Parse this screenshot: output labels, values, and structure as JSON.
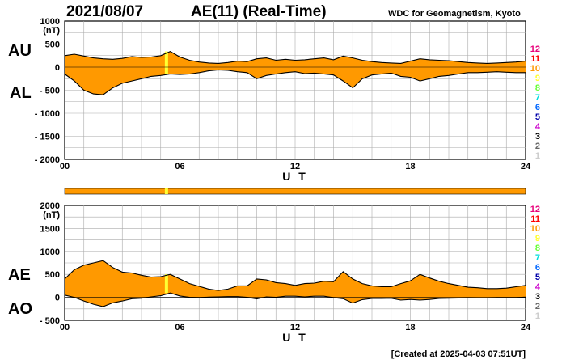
{
  "header": {
    "date": "2021/08/07",
    "title": "AE(11) (Real-Time)",
    "source": "WDC for Geomagnetism, Kyoto"
  },
  "footer": {
    "created": "[Created at 2025-04-03 07:51UT]"
  },
  "legend": {
    "labels": [
      "12",
      "11",
      "10",
      "9",
      "8",
      "7",
      "6",
      "5",
      "4",
      "3",
      "2",
      "1"
    ],
    "colors": [
      "#e8007a",
      "#ff0000",
      "#ff9900",
      "#ffff33",
      "#66ff33",
      "#00dddd",
      "#0066ff",
      "#0000aa",
      "#cc00cc",
      "#000000",
      "#666666",
      "#cccccc"
    ]
  },
  "chart_data": [
    {
      "type": "area",
      "panel": "top",
      "labels": {
        "upper": "AU",
        "lower": "AL"
      },
      "ylabel": "(nT)",
      "xlabel": "U T",
      "ylim": [
        -2000,
        1000
      ],
      "yticks": [
        "1000",
        "500",
        "0",
        "- 500",
        "- 1000",
        "- 1500",
        "- 2000"
      ],
      "ytick_values": [
        1000,
        500,
        0,
        -500,
        -1000,
        -1500,
        -2000
      ],
      "xlim": [
        0,
        24
      ],
      "xticks": [
        "00",
        "06",
        "12",
        "18",
        "24"
      ],
      "xtick_values": [
        0,
        6,
        12,
        18,
        24
      ],
      "grid": true,
      "fill_color": "#ff9900",
      "highlight": {
        "x": 5.3,
        "color": "#ffff33"
      },
      "series": [
        {
          "name": "AU",
          "x": [
            0,
            0.5,
            1,
            1.5,
            2,
            2.5,
            3,
            3.5,
            4,
            4.5,
            5,
            5.5,
            6,
            6.5,
            7,
            7.5,
            8,
            8.5,
            9,
            9.5,
            10,
            10.5,
            11,
            11.5,
            12,
            12.5,
            13,
            13.5,
            14,
            14.5,
            15,
            15.5,
            16,
            16.5,
            17,
            17.5,
            18,
            18.5,
            19,
            19.5,
            20,
            20.5,
            21,
            21.5,
            22,
            22.5,
            23,
            23.5,
            24
          ],
          "values": [
            250,
            280,
            240,
            200,
            180,
            170,
            190,
            230,
            210,
            220,
            250,
            340,
            220,
            150,
            110,
            90,
            80,
            100,
            130,
            120,
            180,
            200,
            150,
            170,
            150,
            160,
            180,
            200,
            160,
            240,
            200,
            150,
            120,
            100,
            90,
            80,
            130,
            180,
            160,
            150,
            140,
            120,
            100,
            90,
            80,
            90,
            100,
            110,
            130
          ]
        },
        {
          "name": "AL",
          "x": [
            0,
            0.5,
            1,
            1.5,
            2,
            2.5,
            3,
            3.5,
            4,
            4.5,
            5,
            5.5,
            6,
            6.5,
            7,
            7.5,
            8,
            8.5,
            9,
            9.5,
            10,
            10.5,
            11,
            11.5,
            12,
            12.5,
            13,
            13.5,
            14,
            14.5,
            15,
            15.5,
            16,
            16.5,
            17,
            17.5,
            18,
            18.5,
            19,
            19.5,
            20,
            20.5,
            21,
            21.5,
            22,
            22.5,
            23,
            23.5,
            24
          ],
          "values": [
            -150,
            -300,
            -500,
            -580,
            -600,
            -450,
            -350,
            -300,
            -250,
            -200,
            -180,
            -150,
            -160,
            -150,
            -120,
            -80,
            -60,
            -70,
            -100,
            -120,
            -250,
            -180,
            -150,
            -120,
            -100,
            -140,
            -130,
            -150,
            -170,
            -300,
            -450,
            -250,
            -170,
            -150,
            -130,
            -200,
            -220,
            -300,
            -250,
            -200,
            -180,
            -150,
            -120,
            -120,
            -110,
            -100,
            -110,
            -120,
            -120
          ]
        }
      ]
    },
    {
      "type": "area",
      "panel": "bottom",
      "labels": {
        "upper": "AE",
        "lower": "AO"
      },
      "ylabel": "(nT)",
      "xlabel": "U T",
      "ylim": [
        -500,
        2000
      ],
      "yticks": [
        "2000",
        "1500",
        "1000",
        "500",
        "0",
        "- 500"
      ],
      "ytick_values": [
        2000,
        1500,
        1000,
        500,
        0,
        -500
      ],
      "xlim": [
        0,
        24
      ],
      "xticks": [
        "00",
        "06",
        "12",
        "18",
        "24"
      ],
      "xtick_values": [
        0,
        6,
        12,
        18,
        24
      ],
      "grid": true,
      "fill_color": "#ff9900",
      "highlight": {
        "x": 5.3,
        "color": "#ffff33"
      },
      "series": [
        {
          "name": "AE",
          "x": [
            0,
            0.5,
            1,
            1.5,
            2,
            2.5,
            3,
            3.5,
            4,
            4.5,
            5,
            5.5,
            6,
            6.5,
            7,
            7.5,
            8,
            8.5,
            9,
            9.5,
            10,
            10.5,
            11,
            11.5,
            12,
            12.5,
            13,
            13.5,
            14,
            14.5,
            15,
            15.5,
            16,
            16.5,
            17,
            17.5,
            18,
            18.5,
            19,
            19.5,
            20,
            20.5,
            21,
            21.5,
            22,
            22.5,
            23,
            23.5,
            24
          ],
          "values": [
            400,
            600,
            700,
            750,
            800,
            650,
            550,
            530,
            480,
            440,
            450,
            500,
            400,
            300,
            240,
            180,
            150,
            180,
            250,
            250,
            400,
            380,
            320,
            300,
            260,
            300,
            310,
            350,
            340,
            560,
            400,
            300,
            250,
            230,
            230,
            300,
            360,
            500,
            420,
            350,
            300,
            260,
            220,
            210,
            190,
            190,
            200,
            230,
            260
          ]
        },
        {
          "name": "AO",
          "x": [
            0,
            0.5,
            1,
            1.5,
            2,
            2.5,
            3,
            3.5,
            4,
            4.5,
            5,
            5.5,
            6,
            6.5,
            7,
            7.5,
            8,
            8.5,
            9,
            9.5,
            10,
            10.5,
            11,
            11.5,
            12,
            12.5,
            13,
            13.5,
            14,
            14.5,
            15,
            15.5,
            16,
            16.5,
            17,
            17.5,
            18,
            18.5,
            19,
            19.5,
            20,
            20.5,
            21,
            21.5,
            22,
            22.5,
            23,
            23.5,
            24
          ],
          "values": [
            50,
            0,
            -80,
            -150,
            -200,
            -120,
            -80,
            -30,
            -20,
            10,
            35,
            95,
            30,
            0,
            -5,
            5,
            10,
            15,
            15,
            0,
            -35,
            10,
            0,
            25,
            25,
            10,
            25,
            25,
            -5,
            -30,
            -125,
            -50,
            -25,
            -25,
            -20,
            -60,
            -45,
            -60,
            -45,
            -25,
            -20,
            -15,
            -10,
            -15,
            -15,
            -5,
            -5,
            -5,
            5
          ]
        }
      ]
    }
  ]
}
